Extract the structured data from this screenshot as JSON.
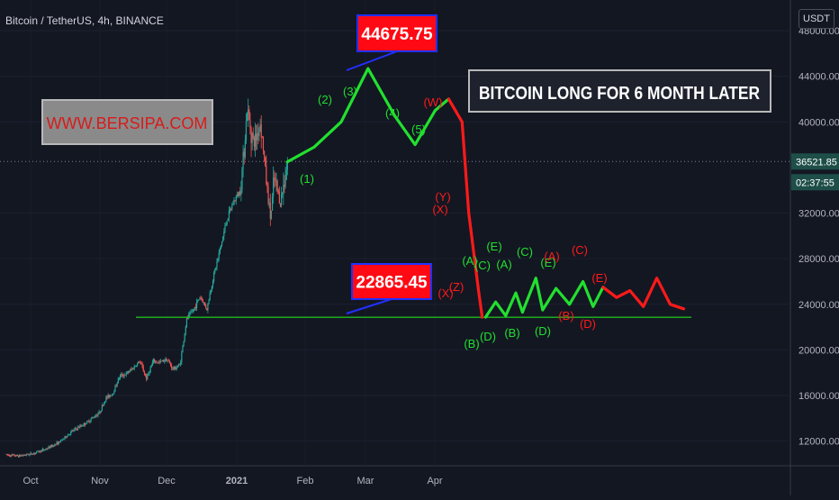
{
  "header": {
    "symbol_line": "Bitcoin / TetherUS, 4h, BINANCE",
    "currency": "USDT"
  },
  "annotations": {
    "website": "WWW.BERSIPA.COM",
    "headline": "BITCOIN LONG FOR 6 MONTH LATER",
    "high_value": "44675.75",
    "low_value": "22865.45"
  },
  "price_scale": {
    "current_price": "36521.85",
    "countdown": "02:37:55"
  },
  "wave_labels": {
    "impulse": [
      "(1)",
      "(2)",
      "(3)",
      "(4)",
      "(5)"
    ],
    "correction": [
      "(W)",
      "(X)",
      "(Y)",
      "(X)",
      "(Z)"
    ],
    "triangle_green": [
      "(A)",
      "(B)",
      "(C)",
      "(D)",
      "(E)",
      "(A)",
      "(B)",
      "(C)",
      "(D)",
      "(E)"
    ],
    "triangle_red": [
      "(A)",
      "(B)",
      "(C)",
      "(D)",
      "(E)"
    ]
  },
  "colors": {
    "background": "#131722",
    "impulse": "#22e02f",
    "correction": "#ff1a1a",
    "support_line": "#1fb81f",
    "candle_up": "#26a69a",
    "candle_down": "#ef5350",
    "callout_fill": "#ff0a14",
    "callout_border": "#2230ff",
    "price_tag": "#1e4e48"
  },
  "chart_data": {
    "type": "candlestick",
    "title": "",
    "x_tick_labels": [
      "Oct",
      "Nov",
      "Dec",
      "2021",
      "Feb",
      "Mar",
      "Apr"
    ],
    "y_tick_labels": [
      "12000.00",
      "16000.00",
      "20000.00",
      "24000.00",
      "28000.00",
      "32000.00",
      "40000.00",
      "44000.00",
      "48000.00"
    ],
    "y_range": [
      9200,
      51000
    ],
    "candle_close_path": [
      [
        0,
        10800
      ],
      [
        4,
        10700
      ],
      [
        8,
        10900
      ],
      [
        12,
        11300
      ],
      [
        16,
        11900
      ],
      [
        20,
        12900
      ],
      [
        24,
        13600
      ],
      [
        28,
        14500
      ],
      [
        30,
        15800
      ],
      [
        32,
        16200
      ],
      [
        34,
        17700
      ],
      [
        36,
        17900
      ],
      [
        38,
        18400
      ],
      [
        40,
        19000
      ],
      [
        42,
        17500
      ],
      [
        44,
        19000
      ],
      [
        46,
        18900
      ],
      [
        48,
        19200
      ],
      [
        50,
        18300
      ],
      [
        52,
        18700
      ],
      [
        54,
        22700
      ],
      [
        56,
        23500
      ],
      [
        58,
        24700
      ],
      [
        60,
        23600
      ],
      [
        62,
        26500
      ],
      [
        64,
        28900
      ],
      [
        66,
        31500
      ],
      [
        68,
        33000
      ],
      [
        70,
        34000
      ],
      [
        72,
        41000
      ],
      [
        74,
        38000
      ],
      [
        76,
        40000
      ],
      [
        78,
        34000
      ],
      [
        79,
        31500
      ],
      [
        80,
        35000
      ],
      [
        82,
        33000
      ],
      [
        84,
        36500
      ]
    ],
    "series": [
      {
        "name": "",
        "color": "#22e02f",
        "points": [
          [
            84,
            36500
          ],
          [
            92,
            37800
          ],
          [
            100,
            40000
          ],
          [
            108,
            44675.75
          ],
          [
            116,
            40500
          ],
          [
            122,
            38000
          ],
          [
            128,
            41000
          ],
          [
            132,
            42000
          ]
        ]
      },
      {
        "name": "",
        "color": "#ff1a1a",
        "points": [
          [
            132,
            42000
          ],
          [
            136,
            40000
          ],
          [
            138,
            32000
          ],
          [
            141,
            25000
          ],
          [
            142,
            22865.45
          ]
        ]
      },
      {
        "name": "",
        "color": "#22e02f",
        "points": [
          [
            143,
            22865.45
          ],
          [
            146,
            24200
          ],
          [
            149,
            23000
          ],
          [
            152,
            25000
          ],
          [
            154,
            23300
          ],
          [
            158,
            26300
          ],
          [
            160,
            23500
          ],
          [
            164,
            25400
          ],
          [
            168,
            24000
          ],
          [
            172,
            26000
          ],
          [
            175,
            23800
          ],
          [
            178,
            25500
          ]
        ]
      },
      {
        "name": "",
        "color": "#ff1a1a",
        "points": [
          [
            178,
            25500
          ],
          [
            182,
            24600
          ],
          [
            186,
            25200
          ],
          [
            190,
            23800
          ],
          [
            194,
            26300
          ],
          [
            198,
            24000
          ],
          [
            202,
            23600
          ]
        ]
      }
    ],
    "support_level": 22865.45,
    "high_level": 44675.75,
    "current_price": 36521.85
  }
}
